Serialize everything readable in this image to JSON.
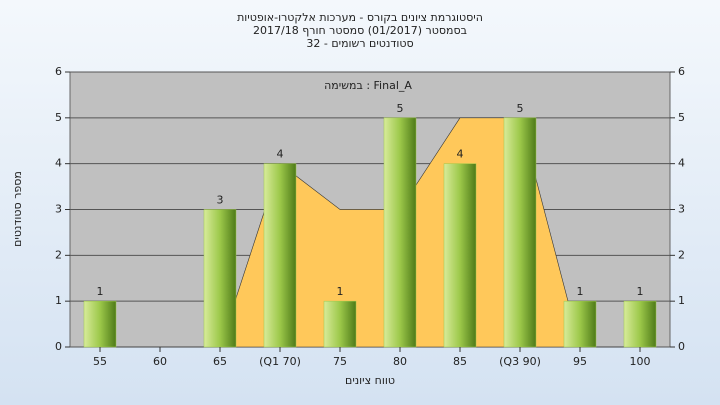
{
  "chart_data": {
    "type": "bar",
    "title": [
      "היסטוגרמת ציונים בקורס - מערכות אלקטרו-אופטיות",
      "בסמסטר (01/2017) סמסטר חורף 2017/18",
      "סטודנטים רשומים - 32"
    ],
    "subtitle": "במשימה : Final_A",
    "x_label": "טווח ציונים",
    "y_label": "מספר סטודנטים",
    "categories": [
      "55",
      "60",
      "65",
      "(Q1 70)",
      "75",
      "80",
      "85",
      "(Q3 90)",
      "95",
      "100"
    ],
    "series": [
      {
        "type": "area",
        "color": "#ffc85a",
        "values": [
          0,
          0,
          0,
          4,
          3,
          3,
          5,
          5,
          0,
          0
        ]
      },
      {
        "type": "bar",
        "color": "#9cc84a",
        "values": [
          1,
          0,
          3,
          4,
          1,
          5,
          4,
          5,
          1,
          1
        ]
      }
    ],
    "ylim": [
      0,
      6
    ],
    "yticks": [
      0,
      1,
      2,
      3,
      4,
      5,
      6
    ],
    "y2lim": [
      0,
      6
    ],
    "y2ticks": [
      0,
      1,
      2,
      3,
      4,
      5,
      6
    ],
    "grid": true
  }
}
